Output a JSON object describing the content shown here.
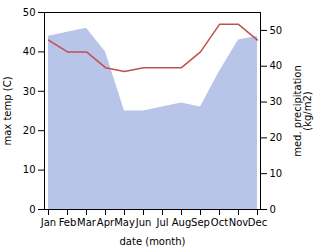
{
  "chart_data": {
    "type": "line",
    "xlabel": "date (month)",
    "ylabel": "max temp (C)",
    "y2label": "med. precipitation\n(kg/m2)",
    "categories": [
      "Jan",
      "Feb",
      "Mar",
      "Apr",
      "May",
      "Jun",
      "Jul",
      "Aug",
      "Sep",
      "Oct",
      "Nov",
      "Dec"
    ],
    "series": [
      {
        "type": "area",
        "color": "#b8c4e8",
        "values": [
          44,
          45,
          46,
          40,
          25,
          25,
          26,
          27,
          26,
          35,
          43,
          44
        ]
      },
      {
        "type": "line",
        "color": "#c0504d",
        "values": [
          43,
          40,
          40,
          36,
          35,
          36,
          36,
          36,
          40,
          47,
          47,
          43
        ]
      }
    ],
    "ylim": [
      0,
      50
    ],
    "yticks": [
      0,
      10,
      20,
      30,
      40,
      50
    ],
    "y2lim": [
      0,
      55
    ],
    "y2ticks": [
      0,
      10,
      20,
      30,
      40,
      50
    ],
    "grid": false
  }
}
